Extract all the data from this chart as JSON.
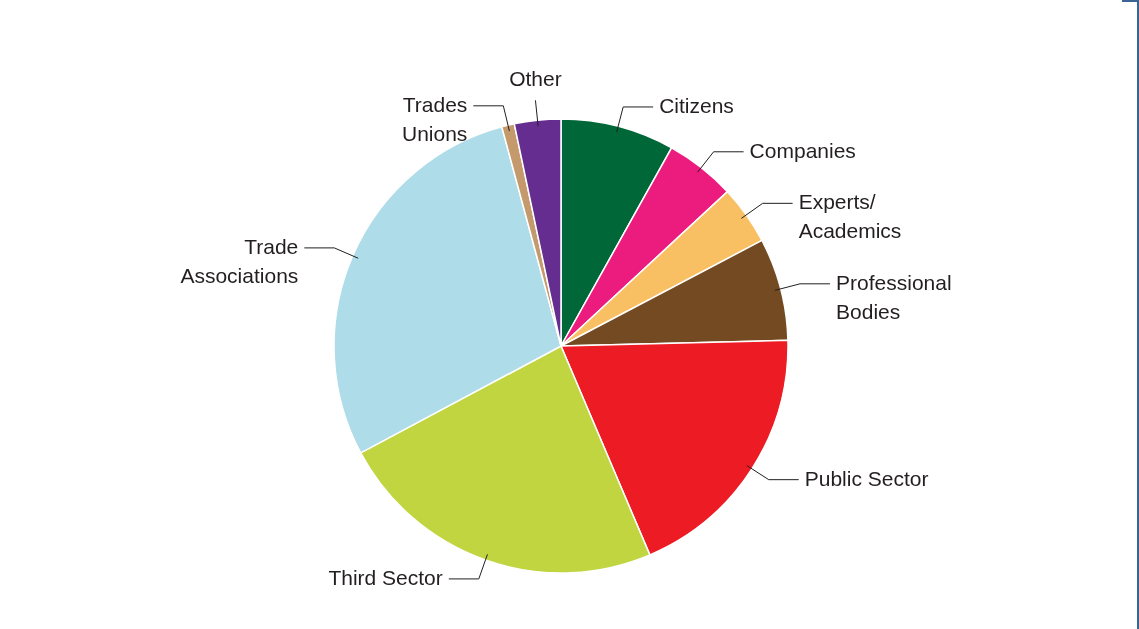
{
  "chart_data": {
    "type": "pie",
    "categories": [
      "Citizens",
      "Companies",
      "Experts/Academics",
      "Professional Bodies",
      "Public Sector",
      "Third Sector",
      "Trade Associations",
      "Trades Unions",
      "Other"
    ],
    "values": [
      8.1,
      5.0,
      4.2,
      7.3,
      19.0,
      23.6,
      28.6,
      0.9,
      3.3
    ],
    "colors": [
      "#006838",
      "#ec1c7e",
      "#f9bf63",
      "#734a21",
      "#ed1c24",
      "#c1d540",
      "#aedce8",
      "#c49a6c",
      "#662d91"
    ]
  }
}
